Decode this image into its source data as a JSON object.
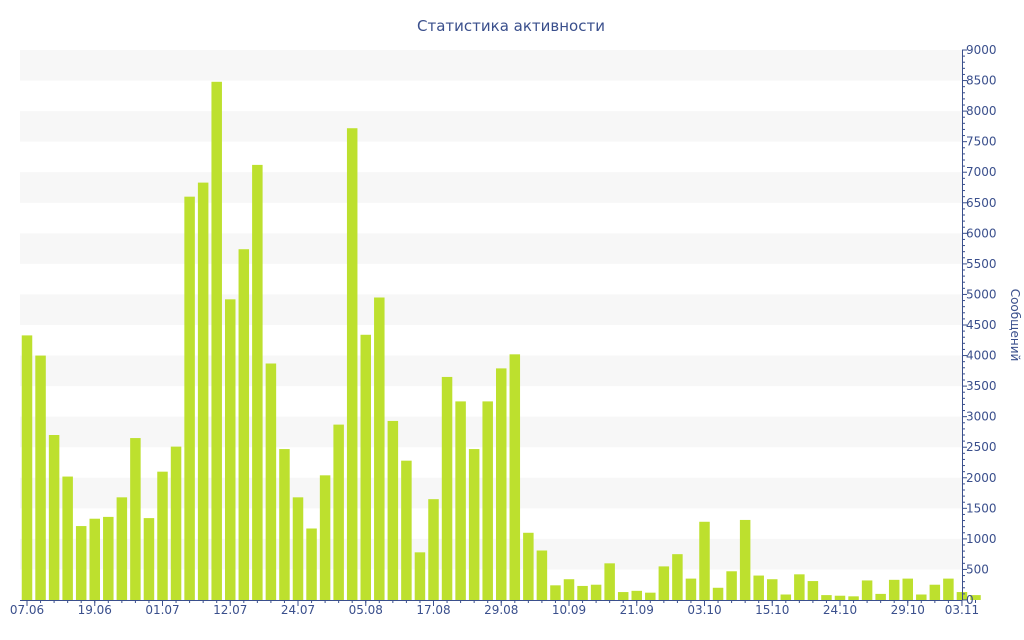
{
  "chart_data": {
    "type": "bar",
    "title": "Статистика активности",
    "ylabel": "Сообщений",
    "xlabel": "",
    "ylim": [
      0,
      9000
    ],
    "y_ticks": [
      0,
      500,
      1000,
      1500,
      2000,
      2500,
      3000,
      3500,
      4000,
      4500,
      5000,
      5500,
      6000,
      6500,
      7000,
      7500,
      8000,
      8500,
      9000
    ],
    "y_axis_side": "right",
    "grid": "alternating horizontal bands",
    "bar_color": "#bde02e",
    "band_color": "#f7f7f7",
    "text_color": "#3a4f8c",
    "x_tick_labels": [
      "07.06",
      "19.06",
      "01.07",
      "12.07",
      "24.07",
      "05.08",
      "17.08",
      "29.08",
      "10.09",
      "21.09",
      "03.10",
      "15.10",
      "24.10",
      "29.10",
      "03.11"
    ],
    "x_tick_positions": [
      0,
      5,
      10,
      15,
      20,
      25,
      30,
      35,
      40,
      45,
      50,
      55,
      60,
      65,
      69
    ],
    "values": [
      4330,
      4000,
      2700,
      2020,
      1210,
      1330,
      1360,
      1680,
      2650,
      1340,
      2100,
      2510,
      6600,
      6830,
      8480,
      4920,
      5740,
      7120,
      3870,
      2470,
      1680,
      1170,
      2040,
      2870,
      7720,
      4340,
      4950,
      2930,
      2280,
      780,
      1650,
      3650,
      3250,
      2470,
      3250,
      3790,
      4020,
      1100,
      810,
      240,
      340,
      230,
      250,
      600,
      130,
      150,
      120,
      550,
      750,
      350,
      1280,
      200,
      470,
      1310,
      400,
      340,
      90,
      420,
      310,
      80,
      70,
      60,
      320,
      100,
      330,
      350,
      90,
      250,
      350,
      130,
      80
    ]
  }
}
